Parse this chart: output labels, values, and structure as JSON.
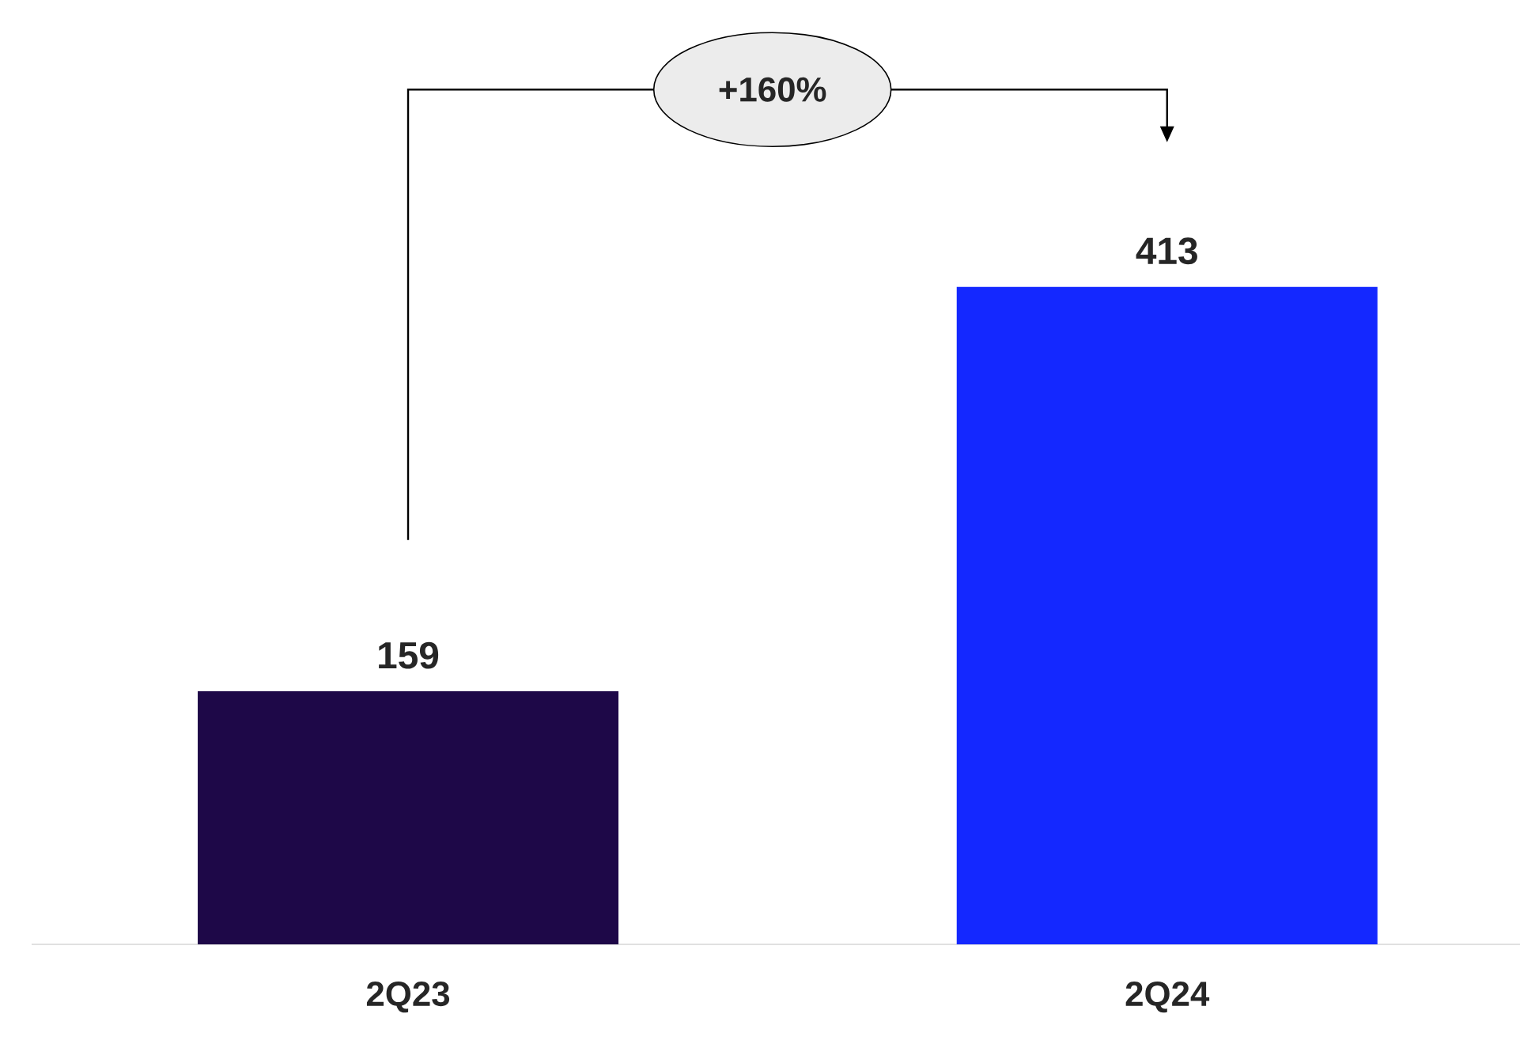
{
  "chart_data": {
    "type": "bar",
    "categories": [
      "2Q23",
      "2Q24"
    ],
    "values": [
      159,
      413
    ],
    "colors": [
      "#1e0848",
      "#1428ff"
    ],
    "data_labels": true,
    "annotations": [
      "+160%"
    ]
  }
}
